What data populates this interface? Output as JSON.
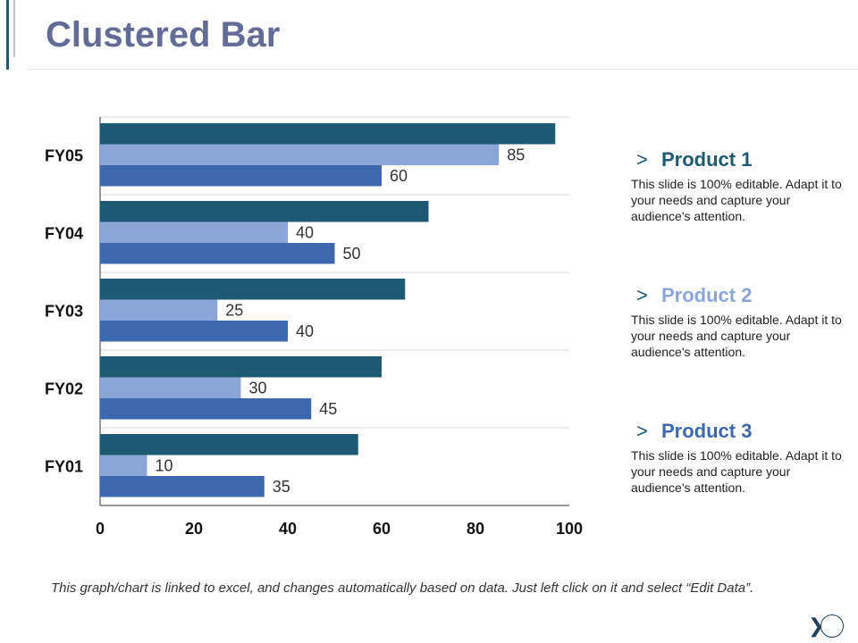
{
  "page": {
    "title": "Clustered Bar"
  },
  "chart_data": {
    "type": "bar",
    "orientation": "horizontal",
    "categories": [
      "FY01",
      "FY02",
      "FY03",
      "FY04",
      "FY05"
    ],
    "series": [
      {
        "name": "Product 1",
        "color": "#1f5a73",
        "values": [
          55,
          60,
          65,
          70,
          97
        ],
        "labeled": false
      },
      {
        "name": "Product 2",
        "color": "#8ba6d6",
        "values": [
          10,
          30,
          25,
          40,
          85
        ],
        "labeled": true
      },
      {
        "name": "Product 3",
        "color": "#3e68ad",
        "values": [
          35,
          45,
          40,
          50,
          60
        ],
        "labeled": true
      }
    ],
    "xlim": [
      0,
      100
    ],
    "xticks": [
      "0",
      "20",
      "40",
      "60",
      "80",
      "100"
    ],
    "gridlines": true
  },
  "legend": [
    {
      "name": "Product 1",
      "color": "#1f5a73",
      "description": "This slide is 100% editable. Adapt it to your needs and capture your audience's attention."
    },
    {
      "name": "Product 2",
      "color": "#8ba6d6",
      "description": "This slide is 100% editable. Adapt it to your needs and capture your audience's attention."
    },
    {
      "name": "Product 3",
      "color": "#3e68ad",
      "description": "This slide is 100% editable. Adapt it to your needs and capture your audience's attention."
    }
  ],
  "legend_chevron": ">",
  "footer": {
    "text": "This graph/chart is linked to excel, and changes automatically based on data. Just left click on it and select “Edit Data”."
  },
  "nav": {
    "next_symbol": "❯"
  }
}
